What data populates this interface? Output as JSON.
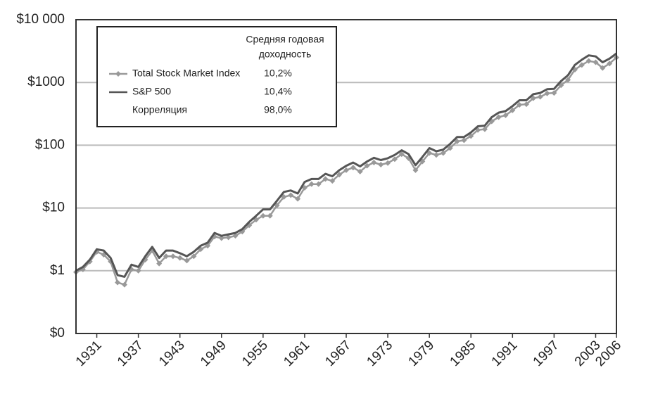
{
  "chart_data": {
    "type": "line",
    "log_scale": true,
    "grid": true,
    "grid_color": "#bbbbbb",
    "x": [
      1928,
      1929,
      1930,
      1931,
      1932,
      1933,
      1934,
      1935,
      1936,
      1937,
      1938,
      1939,
      1940,
      1941,
      1942,
      1943,
      1944,
      1945,
      1946,
      1947,
      1948,
      1949,
      1950,
      1951,
      1952,
      1953,
      1954,
      1955,
      1956,
      1957,
      1958,
      1959,
      1960,
      1961,
      1962,
      1963,
      1964,
      1965,
      1966,
      1967,
      1968,
      1969,
      1970,
      1971,
      1972,
      1973,
      1974,
      1975,
      1976,
      1977,
      1978,
      1979,
      1980,
      1981,
      1982,
      1983,
      1984,
      1985,
      1986,
      1987,
      1988,
      1989,
      1990,
      1991,
      1992,
      1993,
      1994,
      1995,
      1996,
      1997,
      1998,
      1999,
      2000,
      2001,
      2002,
      2003,
      2004,
      2005,
      2006
    ],
    "xlim": [
      1928,
      2006
    ],
    "xticks": [
      1931,
      1937,
      1943,
      1949,
      1955,
      1961,
      1967,
      1973,
      1979,
      1985,
      1991,
      1997,
      2003,
      2006
    ],
    "ylim": [
      0.1,
      10000
    ],
    "yticks": [
      {
        "value": 0.1,
        "label": "$0"
      },
      {
        "value": 1,
        "label": "$1"
      },
      {
        "value": 10,
        "label": "$10"
      },
      {
        "value": 100,
        "label": "$100"
      },
      {
        "value": 1000,
        "label": "$1000"
      },
      {
        "value": 10000,
        "label": "$10 000"
      }
    ],
    "legend_header": [
      "Средняя годовая",
      "доходность"
    ],
    "series": [
      {
        "name": "Total Stock Market Index",
        "color": "#999999",
        "marker": "diamond",
        "annual_return": "10,2%",
        "values": [
          0.95,
          1.05,
          1.4,
          2.0,
          1.8,
          1.4,
          0.65,
          0.6,
          1.05,
          1.0,
          1.5,
          2.1,
          1.3,
          1.7,
          1.7,
          1.6,
          1.45,
          1.7,
          2.2,
          2.5,
          3.5,
          3.3,
          3.4,
          3.6,
          4.2,
          5.3,
          6.5,
          7.5,
          7.5,
          11,
          15,
          16,
          14,
          21,
          24,
          24,
          29,
          27,
          34,
          40,
          44,
          38,
          47,
          53,
          49,
          52,
          60,
          72,
          62,
          40,
          55,
          75,
          70,
          75,
          90,
          115,
          120,
          140,
          175,
          180,
          240,
          280,
          300,
          360,
          440,
          450,
          560,
          590,
          670,
          680,
          900,
          1100,
          1600,
          1900,
          2200,
          2100,
          1700,
          2000,
          2500
        ]
      },
      {
        "name": "S&P 500",
        "color": "#555555",
        "marker": "none",
        "annual_return": "10,4%",
        "values": [
          1.0,
          1.15,
          1.5,
          2.2,
          2.1,
          1.6,
          0.85,
          0.8,
          1.25,
          1.15,
          1.7,
          2.4,
          1.6,
          2.1,
          2.1,
          1.9,
          1.7,
          2.0,
          2.5,
          2.8,
          4.0,
          3.6,
          3.8,
          4.0,
          4.6,
          6,
          7.5,
          9.5,
          9.5,
          13,
          18,
          19,
          17,
          26,
          29,
          29,
          35,
          32,
          40,
          47,
          53,
          46,
          55,
          63,
          58,
          62,
          70,
          83,
          72,
          48,
          65,
          90,
          80,
          85,
          105,
          135,
          135,
          160,
          200,
          205,
          280,
          330,
          350,
          420,
          520,
          520,
          650,
          680,
          780,
          790,
          1050,
          1300,
          1900,
          2300,
          2700,
          2600,
          2100,
          2400,
          2900
        ]
      }
    ],
    "correlation": {
      "label": "Корреляция",
      "value_label": "98,0%"
    }
  }
}
